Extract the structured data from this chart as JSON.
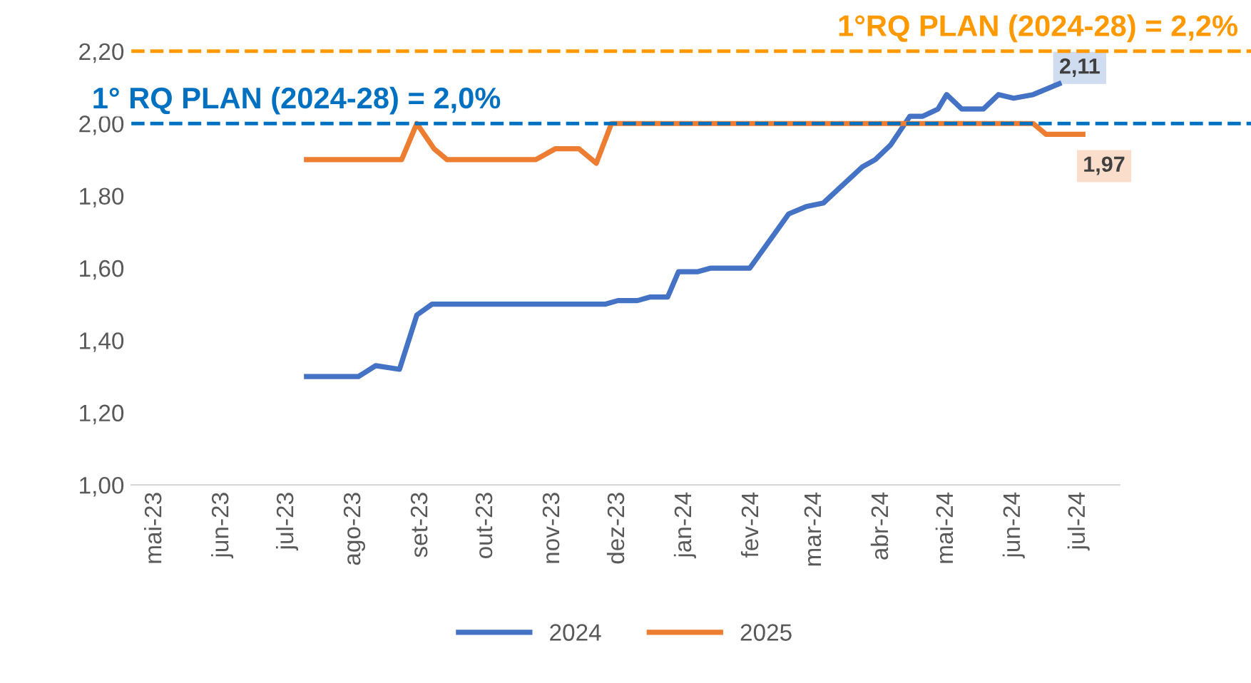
{
  "chart_data": {
    "type": "line",
    "series": [
      {
        "name": "2024",
        "color": "#4472c4",
        "x": [
          "2023-07-10",
          "2023-08-03",
          "2023-08-11",
          "2023-08-22",
          "2023-08-30",
          "2023-09-06",
          "2023-11-25",
          "2023-12-01",
          "2023-12-10",
          "2023-12-16",
          "2023-12-24",
          "2023-12-29",
          "2024-01-07",
          "2024-01-13",
          "2024-01-31",
          "2024-02-12",
          "2024-02-18",
          "2024-02-26",
          "2024-03-05",
          "2024-03-14",
          "2024-03-23",
          "2024-03-29",
          "2024-04-05",
          "2024-04-14",
          "2024-04-20",
          "2024-04-27",
          "2024-05-01",
          "2024-05-08",
          "2024-05-18",
          "2024-05-25",
          "2024-06-01",
          "2024-06-10",
          "2024-06-22"
        ],
        "values": [
          1.3,
          1.3,
          1.33,
          1.32,
          1.47,
          1.5,
          1.5,
          1.51,
          1.51,
          1.52,
          1.52,
          1.59,
          1.59,
          1.6,
          1.6,
          1.7,
          1.75,
          1.77,
          1.78,
          1.83,
          1.88,
          1.9,
          1.94,
          2.02,
          2.02,
          2.04,
          2.08,
          2.04,
          2.04,
          2.08,
          2.07,
          2.08,
          2.11
        ]
      },
      {
        "name": "2025",
        "color": "#ed7d31",
        "x": [
          "2023-07-10",
          "2023-08-23",
          "2023-08-30",
          "2023-09-07",
          "2023-09-13",
          "2023-10-24",
          "2023-11-02",
          "2023-11-13",
          "2023-11-21",
          "2023-11-28",
          "2024-06-10",
          "2024-06-16",
          "2024-07-03"
        ],
        "values": [
          1.9,
          1.9,
          2.0,
          1.93,
          1.9,
          1.9,
          1.93,
          1.93,
          1.89,
          2.0,
          2.0,
          1.97,
          1.97
        ]
      }
    ],
    "ylim": [
      1.0,
      2.2
    ],
    "yticks": [
      {
        "value": 1.0,
        "label": "1,00"
      },
      {
        "value": 1.2,
        "label": "1,20"
      },
      {
        "value": 1.4,
        "label": "1,40"
      },
      {
        "value": 1.6,
        "label": "1,60"
      },
      {
        "value": 1.8,
        "label": "1,80"
      },
      {
        "value": 2.0,
        "label": "2,00"
      },
      {
        "value": 2.2,
        "label": "2,20"
      }
    ],
    "xlim": [
      "2023-04-20",
      "2024-07-20"
    ],
    "xticks": [
      {
        "value": "2023-05-01",
        "label": "mai-23"
      },
      {
        "value": "2023-06-01",
        "label": "jun-23"
      },
      {
        "value": "2023-07-01",
        "label": "jul-23"
      },
      {
        "value": "2023-08-01",
        "label": "ago-23"
      },
      {
        "value": "2023-09-01",
        "label": "set-23"
      },
      {
        "value": "2023-10-01",
        "label": "out-23"
      },
      {
        "value": "2023-11-01",
        "label": "nov-23"
      },
      {
        "value": "2023-12-01",
        "label": "dez-23"
      },
      {
        "value": "2024-01-01",
        "label": "jan-24"
      },
      {
        "value": "2024-02-01",
        "label": "fev-24"
      },
      {
        "value": "2024-03-01",
        "label": "mar-24"
      },
      {
        "value": "2024-04-01",
        "label": "abr-24"
      },
      {
        "value": "2024-05-01",
        "label": "mai-24"
      },
      {
        "value": "2024-06-01",
        "label": "jun-24"
      },
      {
        "value": "2024-07-01",
        "label": "jul-24"
      }
    ],
    "ref_lines": [
      {
        "axis": "y",
        "value": 2.0,
        "label": "1° RQ PLAN (2024-28) = 2,0%",
        "color": "#0070c0",
        "line_style": "dashed"
      },
      {
        "axis": "y",
        "value": 2.2,
        "label": "1°RQ PLAN (2024-28) = 2,2%",
        "color": "#ff9900",
        "line_style": "dashed"
      }
    ],
    "annotations": [
      {
        "text": "2,11",
        "x": "2024-06-22",
        "y": 2.11
      },
      {
        "text": "1,97",
        "x": "2024-07-03",
        "y": 1.97
      }
    ],
    "legend": "bottom",
    "grid": false,
    "marker": "none",
    "line_style": "solid"
  }
}
